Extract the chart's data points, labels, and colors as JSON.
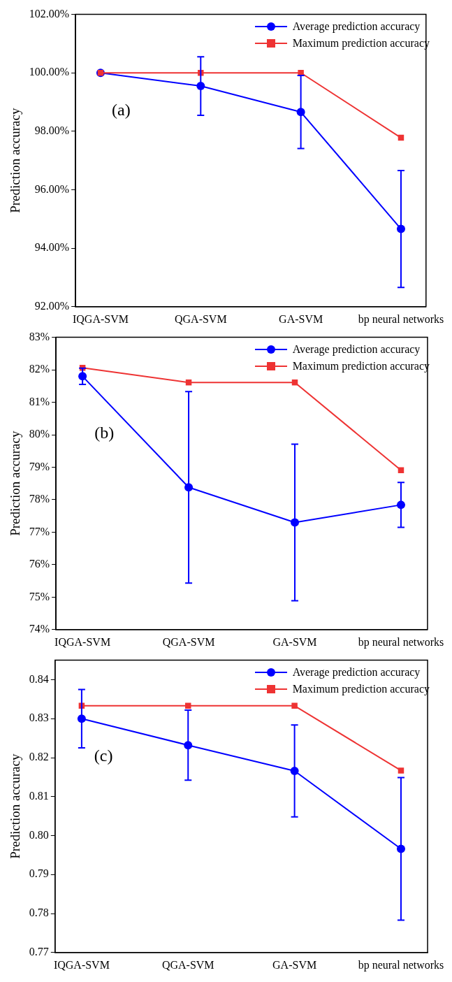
{
  "chart_data": [
    {
      "type": "line",
      "ylabel": "Prediction accuracy",
      "annotations": [
        "(a)"
      ],
      "categories": [
        "IQGA-SVM",
        "QGA-SVM",
        "GA-SVM",
        "bp neural networks"
      ],
      "ylim": [
        92,
        102
      ],
      "yticks": [
        {
          "value": 92,
          "label": "92.00%"
        },
        {
          "value": 94,
          "label": "94.00%"
        },
        {
          "value": 96,
          "label": "96.00%"
        },
        {
          "value": 98,
          "label": "98.00%"
        },
        {
          "value": 100,
          "label": "100.00%"
        },
        {
          "value": 102,
          "label": "102.00%"
        }
      ],
      "legend": "top right",
      "grid": false,
      "line_style": "solid",
      "series": [
        {
          "name": "Average prediction accuracy",
          "color": "#0000ff",
          "marker": "circle",
          "values": [
            100,
            99.55,
            98.66,
            94.66
          ],
          "errors": [
            null,
            1.0,
            1.25,
            2.0
          ]
        },
        {
          "name": "Maximum prediction accuracy",
          "color": "#ee3333",
          "marker": "square",
          "values": [
            100,
            100,
            100,
            97.78
          ]
        }
      ]
    },
    {
      "type": "line",
      "ylabel": "Prediction accuracy",
      "annotations": [
        "(b)"
      ],
      "categories": [
        "IQGA-SVM",
        "QGA-SVM",
        "GA-SVM",
        "bp neural networks"
      ],
      "ylim": [
        74,
        83
      ],
      "yticks": [
        {
          "value": 74,
          "label": "74%"
        },
        {
          "value": 75,
          "label": "75%"
        },
        {
          "value": 76,
          "label": "76%"
        },
        {
          "value": 77,
          "label": "77%"
        },
        {
          "value": 78,
          "label": "78%"
        },
        {
          "value": 79,
          "label": "79%"
        },
        {
          "value": 80,
          "label": "80%"
        },
        {
          "value": 81,
          "label": "81%"
        },
        {
          "value": 82,
          "label": "82%"
        },
        {
          "value": 83,
          "label": "83%"
        }
      ],
      "legend": "top right",
      "grid": false,
      "line_style": "solid",
      "series": [
        {
          "name": "Average prediction accuracy",
          "color": "#0000ff",
          "marker": "circle",
          "values": [
            81.8,
            78.38,
            77.3,
            77.84
          ],
          "errors": [
            0.25,
            2.95,
            2.41,
            0.69
          ]
        },
        {
          "name": "Maximum prediction accuracy",
          "color": "#ee3333",
          "marker": "square",
          "values": [
            82.06,
            81.61,
            81.61,
            78.91
          ]
        }
      ]
    },
    {
      "type": "line",
      "ylabel": "Prediction accuracy",
      "annotations": [
        "(c)"
      ],
      "categories": [
        "IQGA-SVM",
        "QGA-SVM",
        "GA-SVM",
        "bp neural networks"
      ],
      "ylim": [
        0.77,
        0.845
      ],
      "yticks": [
        {
          "value": 0.77,
          "label": "0.77"
        },
        {
          "value": 0.78,
          "label": "0.78"
        },
        {
          "value": 0.79,
          "label": "0.79"
        },
        {
          "value": 0.8,
          "label": "0.80"
        },
        {
          "value": 0.81,
          "label": "0.81"
        },
        {
          "value": 0.82,
          "label": "0.82"
        },
        {
          "value": 0.83,
          "label": "0.83"
        },
        {
          "value": 0.84,
          "label": "0.84"
        }
      ],
      "legend": "top right",
      "grid": false,
      "line_style": "solid",
      "series": [
        {
          "name": "Average prediction accuracy",
          "color": "#0000ff",
          "marker": "circle",
          "values": [
            0.83,
            0.8232,
            0.8166,
            0.7966
          ],
          "errors": [
            0.0075,
            0.009,
            0.0118,
            0.0183
          ]
        },
        {
          "name": "Maximum prediction accuracy",
          "color": "#ee3333",
          "marker": "square",
          "values": [
            0.8333,
            0.8333,
            0.8333,
            0.8167
          ]
        }
      ]
    }
  ]
}
